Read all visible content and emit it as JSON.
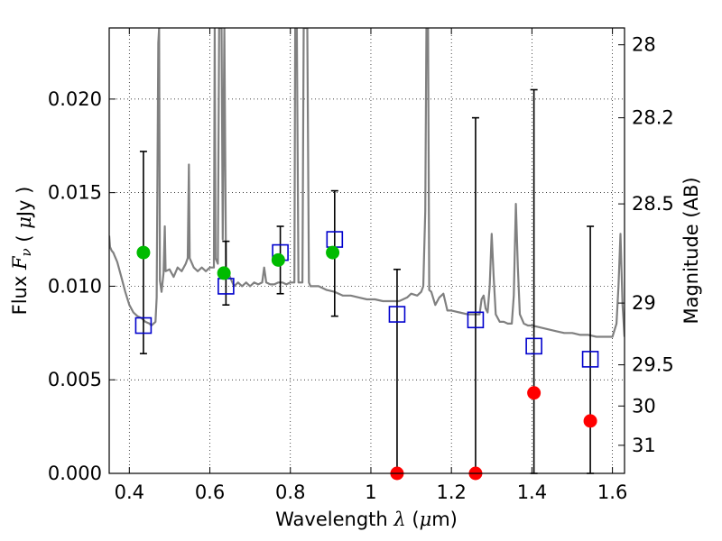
{
  "chart_data": {
    "type": "scatter",
    "xlabel": "Wavelength  λ (μm)",
    "ylabel": "Flux  F_ν  ( μJy )",
    "y2label": "Magnitude (AB)",
    "xlim": [
      0.35,
      1.63
    ],
    "ylim": [
      0.0,
      0.0238
    ],
    "grid": true,
    "x_ticks": [
      0.4,
      0.6,
      0.8,
      1.0,
      1.2,
      1.4,
      1.6
    ],
    "x_tick_labels": [
      "0.4",
      "0.6",
      "0.8",
      "1",
      "1.2",
      "1.4",
      "1.6"
    ],
    "y_ticks": [
      0.0,
      0.005,
      0.01,
      0.015,
      0.02
    ],
    "y_tick_labels": [
      "0.000",
      "0.005",
      "0.010",
      "0.015",
      "0.020"
    ],
    "y2_ticks": [
      {
        "label": "28",
        "flux": 0.0229
      },
      {
        "label": "28.2",
        "flux": 0.019
      },
      {
        "label": "28.5",
        "flux": 0.0144
      },
      {
        "label": "29",
        "flux": 0.0091
      },
      {
        "label": "29.5",
        "flux": 0.0058
      },
      {
        "label": "30",
        "flux": 0.0036
      },
      {
        "label": "31",
        "flux": 0.0015
      }
    ],
    "series": [
      {
        "marker": "open-square",
        "color": "#0000cc",
        "x": [
          0.435,
          0.64,
          0.775,
          0.91,
          1.065,
          1.26,
          1.405,
          1.545
        ],
        "y": [
          0.0079,
          0.01,
          0.0118,
          0.0125,
          0.0085,
          0.0082,
          0.0068,
          0.0061
        ]
      },
      {
        "marker": "filled-circle",
        "color": "#00bb00",
        "x": [
          0.435,
          0.635,
          0.77,
          0.905
        ],
        "y": [
          0.0118,
          0.0107,
          0.0114,
          0.0118
        ]
      },
      {
        "marker": "filled-circle",
        "color": "#ff0000",
        "x": [
          1.065,
          1.26,
          1.405,
          1.545
        ],
        "y": [
          0.0,
          0.0,
          0.0043,
          0.0028
        ]
      }
    ],
    "error_bars": [
      {
        "x": 0.435,
        "low": 0.0064,
        "high": 0.0172
      },
      {
        "x": 0.64,
        "low": 0.009,
        "high": 0.0124
      },
      {
        "x": 0.775,
        "low": 0.0096,
        "high": 0.0132
      },
      {
        "x": 0.91,
        "low": 0.0084,
        "high": 0.0151
      },
      {
        "x": 1.065,
        "low": 0.0,
        "high": 0.0109
      },
      {
        "x": 1.26,
        "low": 0.0,
        "high": 0.019
      },
      {
        "x": 1.405,
        "low": 0.0,
        "high": 0.0205
      },
      {
        "x": 1.545,
        "low": 0.0,
        "high": 0.0132
      }
    ],
    "spectrum": {
      "color": "#808080",
      "points": [
        [
          0.35,
          0.0127
        ],
        [
          0.352,
          0.0121
        ],
        [
          0.356,
          0.0119
        ],
        [
          0.36,
          0.0118
        ],
        [
          0.37,
          0.0113
        ],
        [
          0.38,
          0.0105
        ],
        [
          0.39,
          0.0097
        ],
        [
          0.4,
          0.009
        ],
        [
          0.41,
          0.0086
        ],
        [
          0.42,
          0.0084
        ],
        [
          0.43,
          0.0083
        ],
        [
          0.44,
          0.0081
        ],
        [
          0.45,
          0.008
        ],
        [
          0.455,
          0.0079
        ],
        [
          0.46,
          0.008
        ],
        [
          0.465,
          0.0081
        ],
        [
          0.468,
          0.0094
        ],
        [
          0.472,
          0.023
        ],
        [
          0.474,
          0.0238
        ],
        [
          0.476,
          0.0103
        ],
        [
          0.48,
          0.0097
        ],
        [
          0.485,
          0.0107
        ],
        [
          0.488,
          0.0132
        ],
        [
          0.49,
          0.0108
        ],
        [
          0.5,
          0.0109
        ],
        [
          0.51,
          0.0105
        ],
        [
          0.52,
          0.011
        ],
        [
          0.53,
          0.0108
        ],
        [
          0.54,
          0.0112
        ],
        [
          0.545,
          0.0115
        ],
        [
          0.548,
          0.0165
        ],
        [
          0.55,
          0.0115
        ],
        [
          0.56,
          0.011
        ],
        [
          0.57,
          0.0108
        ],
        [
          0.58,
          0.011
        ],
        [
          0.59,
          0.0108
        ],
        [
          0.6,
          0.011
        ],
        [
          0.61,
          0.011
        ],
        [
          0.612,
          0.0238
        ],
        [
          0.614,
          0.0115
        ],
        [
          0.62,
          0.0112
        ],
        [
          0.623,
          0.0238
        ],
        [
          0.626,
          0.0238
        ],
        [
          0.629,
          0.0238
        ],
        [
          0.632,
          0.0125
        ],
        [
          0.636,
          0.0238
        ],
        [
          0.64,
          0.011
        ],
        [
          0.65,
          0.0105
        ],
        [
          0.66,
          0.01
        ],
        [
          0.67,
          0.0102
        ],
        [
          0.68,
          0.01
        ],
        [
          0.69,
          0.0102
        ],
        [
          0.7,
          0.01
        ],
        [
          0.71,
          0.0102
        ],
        [
          0.72,
          0.0101
        ],
        [
          0.73,
          0.0102
        ],
        [
          0.735,
          0.011
        ],
        [
          0.74,
          0.0102
        ],
        [
          0.75,
          0.0101
        ],
        [
          0.76,
          0.0101
        ],
        [
          0.77,
          0.0102
        ],
        [
          0.78,
          0.0102
        ],
        [
          0.79,
          0.0101
        ],
        [
          0.8,
          0.0102
        ],
        [
          0.81,
          0.0102
        ],
        [
          0.812,
          0.0238
        ],
        [
          0.816,
          0.0238
        ],
        [
          0.82,
          0.0102
        ],
        [
          0.83,
          0.0102
        ],
        [
          0.833,
          0.0238
        ],
        [
          0.838,
          0.0238
        ],
        [
          0.842,
          0.0238
        ],
        [
          0.846,
          0.0102
        ],
        [
          0.85,
          0.01
        ],
        [
          0.87,
          0.01
        ],
        [
          0.89,
          0.0098
        ],
        [
          0.91,
          0.0097
        ],
        [
          0.93,
          0.0095
        ],
        [
          0.95,
          0.0095
        ],
        [
          0.97,
          0.0094
        ],
        [
          0.99,
          0.0093
        ],
        [
          1.01,
          0.0093
        ],
        [
          1.03,
          0.0092
        ],
        [
          1.05,
          0.0092
        ],
        [
          1.07,
          0.0092
        ],
        [
          1.08,
          0.0093
        ],
        [
          1.09,
          0.0094
        ],
        [
          1.1,
          0.0096
        ],
        [
          1.115,
          0.0095
        ],
        [
          1.125,
          0.0097
        ],
        [
          1.13,
          0.01
        ],
        [
          1.135,
          0.014
        ],
        [
          1.138,
          0.0238
        ],
        [
          1.142,
          0.0238
        ],
        [
          1.145,
          0.0098
        ],
        [
          1.15,
          0.0097
        ],
        [
          1.16,
          0.009
        ],
        [
          1.17,
          0.0094
        ],
        [
          1.18,
          0.0096
        ],
        [
          1.19,
          0.0087
        ],
        [
          1.2,
          0.0087
        ],
        [
          1.22,
          0.0086
        ],
        [
          1.24,
          0.0085
        ],
        [
          1.26,
          0.0085
        ],
        [
          1.27,
          0.0085
        ],
        [
          1.275,
          0.0093
        ],
        [
          1.28,
          0.0095
        ],
        [
          1.285,
          0.0088
        ],
        [
          1.29,
          0.0086
        ],
        [
          1.295,
          0.01
        ],
        [
          1.3,
          0.0128
        ],
        [
          1.305,
          0.0105
        ],
        [
          1.31,
          0.0085
        ],
        [
          1.32,
          0.0081
        ],
        [
          1.33,
          0.0081
        ],
        [
          1.34,
          0.008
        ],
        [
          1.35,
          0.008
        ],
        [
          1.355,
          0.0095
        ],
        [
          1.36,
          0.0144
        ],
        [
          1.365,
          0.011
        ],
        [
          1.37,
          0.0085
        ],
        [
          1.38,
          0.008
        ],
        [
          1.39,
          0.0079
        ],
        [
          1.4,
          0.0079
        ],
        [
          1.42,
          0.0078
        ],
        [
          1.44,
          0.0077
        ],
        [
          1.46,
          0.0076
        ],
        [
          1.48,
          0.0075
        ],
        [
          1.5,
          0.0075
        ],
        [
          1.52,
          0.0074
        ],
        [
          1.54,
          0.0074
        ],
        [
          1.56,
          0.0073
        ],
        [
          1.58,
          0.0073
        ],
        [
          1.6,
          0.0073
        ],
        [
          1.61,
          0.008
        ],
        [
          1.615,
          0.01
        ],
        [
          1.62,
          0.0128
        ],
        [
          1.625,
          0.009
        ],
        [
          1.63,
          0.0073
        ]
      ]
    }
  }
}
